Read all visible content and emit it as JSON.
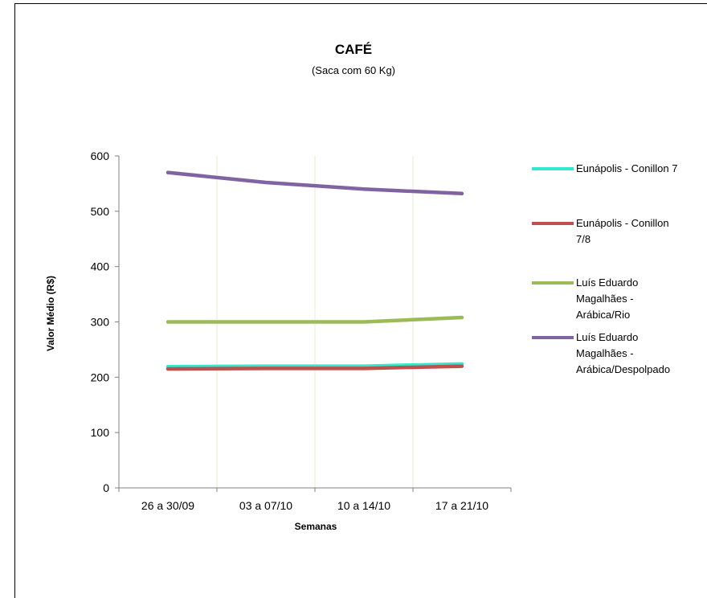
{
  "chart_data": {
    "type": "line",
    "title": "CAFÉ",
    "subtitle": "(Saca com 60 Kg)",
    "xlabel": "Semanas",
    "ylabel": "Valor Médio (R$)",
    "categories": [
      "26 a 30/09",
      "03 a 07/10",
      "10 a 14/10",
      "17 a 21/10"
    ],
    "ylim": [
      0,
      600
    ],
    "yticks": [
      0,
      100,
      200,
      300,
      400,
      500,
      600
    ],
    "grid": "vertical",
    "legend_position": "right",
    "series": [
      {
        "name": "Eunápolis - Conillon 7",
        "color": "#33e8d0",
        "values": [
          219,
          220,
          220,
          224
        ]
      },
      {
        "name": "Eunápolis - Conillon 7/8",
        "color": "#c0504d",
        "values": [
          215,
          216,
          216,
          220
        ]
      },
      {
        "name": "Luís Eduardo Magalhães - Arábica/Rio",
        "color": "#9bbb59",
        "values": [
          300,
          300,
          300,
          308
        ]
      },
      {
        "name": "Luís Eduardo Magalhães - Arábica/Despolpado",
        "color": "#8064a2",
        "values": [
          570,
          552,
          540,
          532
        ]
      }
    ]
  },
  "legend": {
    "items": [
      {
        "lines": [
          "Eunápolis - Conillon 7"
        ]
      },
      {
        "lines": [
          "Eunápolis - Conillon",
          "7/8"
        ]
      },
      {
        "lines": [
          "Luís Eduardo",
          "Magalhães -",
          "Arábica/Rio"
        ]
      },
      {
        "lines": [
          "Luís Eduardo",
          "Magalhães -",
          "Arábica/Despolpado"
        ]
      }
    ]
  }
}
